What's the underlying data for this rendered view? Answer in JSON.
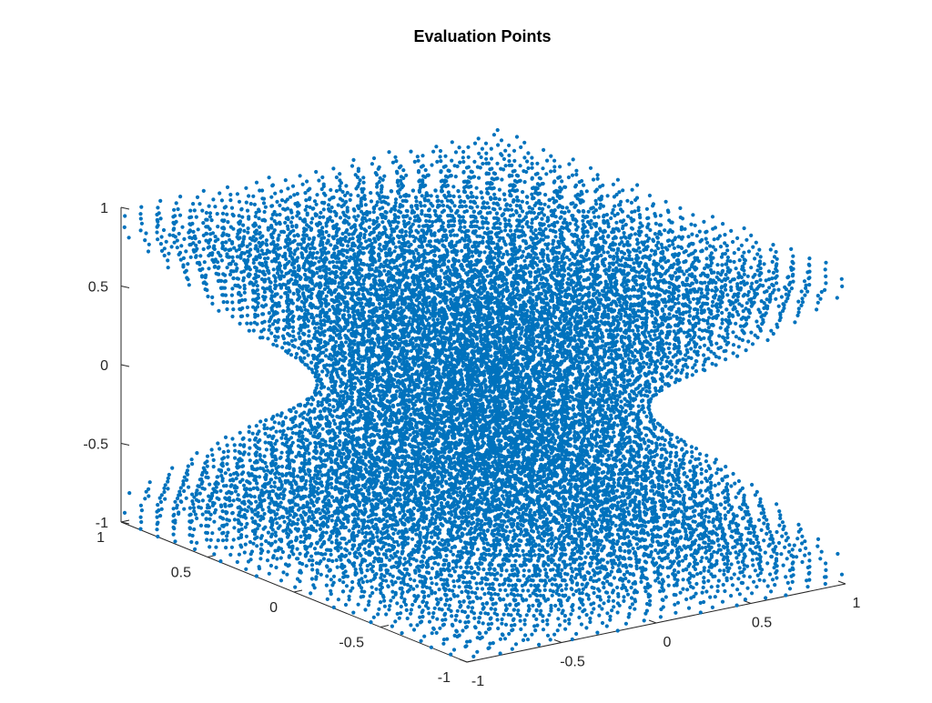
{
  "chart_data": {
    "type": "scatter",
    "title": "Evaluation Points",
    "xlabel": "",
    "ylabel": "",
    "zlabel": "",
    "view": "3d",
    "shape": "hyperboloid-like point cloud, narrow waist at z=0, flat faces at z=±1",
    "xlim": [
      -1,
      1
    ],
    "ylim": [
      -1,
      1
    ],
    "zlim": [
      -1,
      1
    ],
    "x_ticks": [
      "-1",
      "-0.5",
      "0",
      "0.5",
      "1"
    ],
    "y_ticks": [
      "-1",
      "-0.5",
      "0",
      "0.5",
      "1"
    ],
    "z_ticks": [
      "-1",
      "-0.5",
      "0",
      "0.5",
      "1"
    ],
    "series": [
      {
        "marker": "dot",
        "color": "#0072BD"
      }
    ],
    "grid": false,
    "legend": "none"
  }
}
